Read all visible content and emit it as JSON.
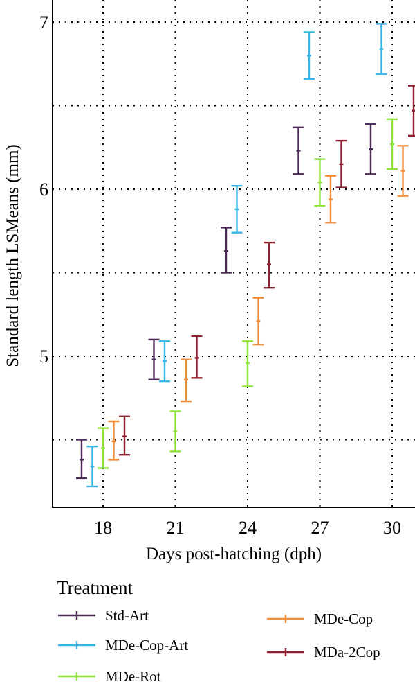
{
  "chart_data": {
    "type": "errorbar",
    "xlabel": "Days post-hatching (dph)",
    "ylabel": "Standard length LSMeans (mm)",
    "x_ticks": [
      "18",
      "21",
      "24",
      "27",
      "30"
    ],
    "y_ticks": [
      5,
      6,
      7
    ],
    "y_tick_labels": [
      "5",
      "6",
      "7"
    ],
    "ylim": [
      4.2,
      7.25
    ],
    "grid": true,
    "legend": {
      "title": "Treatment",
      "placement": "bottom"
    },
    "series": [
      {
        "name": "Std-Art",
        "color": "#4b2a58",
        "points": [
          {
            "x": "18",
            "mean": 4.38,
            "lower": 4.27,
            "upper": 4.5
          },
          {
            "x": "21",
            "mean": 4.98,
            "lower": 4.86,
            "upper": 5.1
          },
          {
            "x": "24",
            "mean": 5.63,
            "lower": 5.5,
            "upper": 5.77
          },
          {
            "x": "27",
            "mean": 6.23,
            "lower": 6.09,
            "upper": 6.37
          },
          {
            "x": "30",
            "mean": 6.24,
            "lower": 6.09,
            "upper": 6.39
          }
        ]
      },
      {
        "name": "MDe-Cop-Art",
        "color": "#38b5e4",
        "points": [
          {
            "x": "18",
            "mean": 4.34,
            "lower": 4.22,
            "upper": 4.46
          },
          {
            "x": "21",
            "mean": 4.97,
            "lower": 4.85,
            "upper": 5.09
          },
          {
            "x": "24",
            "mean": 5.88,
            "lower": 5.74,
            "upper": 6.02
          },
          {
            "x": "27",
            "mean": 6.8,
            "lower": 6.66,
            "upper": 6.94
          },
          {
            "x": "30",
            "mean": 6.84,
            "lower": 6.69,
            "upper": 6.99
          }
        ]
      },
      {
        "name": "MDe-Rot",
        "color": "#8fe23a",
        "points": [
          {
            "x": "18",
            "mean": 4.45,
            "lower": 4.33,
            "upper": 4.57
          },
          {
            "x": "21",
            "mean": 4.55,
            "lower": 4.43,
            "upper": 4.67
          },
          {
            "x": "24",
            "mean": 4.96,
            "lower": 4.82,
            "upper": 5.09
          },
          {
            "x": "27",
            "mean": 6.04,
            "lower": 5.9,
            "upper": 6.18
          },
          {
            "x": "30",
            "mean": 6.27,
            "lower": 6.12,
            "upper": 6.42
          }
        ]
      },
      {
        "name": "MDe-Cop",
        "color": "#ef8d3b",
        "points": [
          {
            "x": "18",
            "mean": 4.49,
            "lower": 4.38,
            "upper": 4.61
          },
          {
            "x": "21",
            "mean": 4.86,
            "lower": 4.73,
            "upper": 4.98
          },
          {
            "x": "24",
            "mean": 5.21,
            "lower": 5.07,
            "upper": 5.35
          },
          {
            "x": "27",
            "mean": 5.94,
            "lower": 5.8,
            "upper": 6.08
          },
          {
            "x": "30",
            "mean": 6.11,
            "lower": 5.96,
            "upper": 6.26
          }
        ]
      },
      {
        "name": "MDa-2Cop",
        "color": "#8e2030",
        "points": [
          {
            "x": "18",
            "mean": 4.52,
            "lower": 4.41,
            "upper": 4.64
          },
          {
            "x": "21",
            "mean": 4.99,
            "lower": 4.87,
            "upper": 5.12
          },
          {
            "x": "24",
            "mean": 5.55,
            "lower": 5.41,
            "upper": 5.68
          },
          {
            "x": "27",
            "mean": 6.15,
            "lower": 6.01,
            "upper": 6.29
          },
          {
            "x": "30",
            "mean": 6.47,
            "lower": 6.32,
            "upper": 6.62
          }
        ]
      }
    ]
  }
}
